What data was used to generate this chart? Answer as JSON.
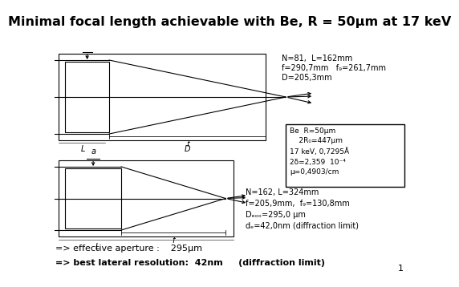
{
  "title": "Minimal focal length achievable with Be, R = 50μm at 17 keV",
  "title_fontsize": 11.5,
  "top_annot_line1": "N=81,  L=162mm",
  "top_annot_line2": "f=290,7mm   f₉=261,7mm",
  "top_annot_line3": "D=205,3mm",
  "box_line1": "Be  R=50μm",
  "box_line2": "    2R₀=447μm",
  "box_line3": "17 keV, 0,7295Å",
  "box_line4": "2δ=2,359  10⁻⁴",
  "box_line5": "μ=0,4903/cm",
  "bot_annot_line1": "N=162, L=324mm",
  "bot_annot_line2": "f=205,9mm,  f₉=130,8mm",
  "bot_annot_line3": "Dₑₒₒ=295,0 μm",
  "bot_annot_line4": "dₑ=42,0nm (diffraction limit)",
  "eff_text1": "=> effective aperture :    295μm",
  "eff_text2": "=> best lateral resolution:  42nm     (diffraction limit)",
  "page_number": "1",
  "bg_color": "#ffffff",
  "fg_color": "#000000"
}
